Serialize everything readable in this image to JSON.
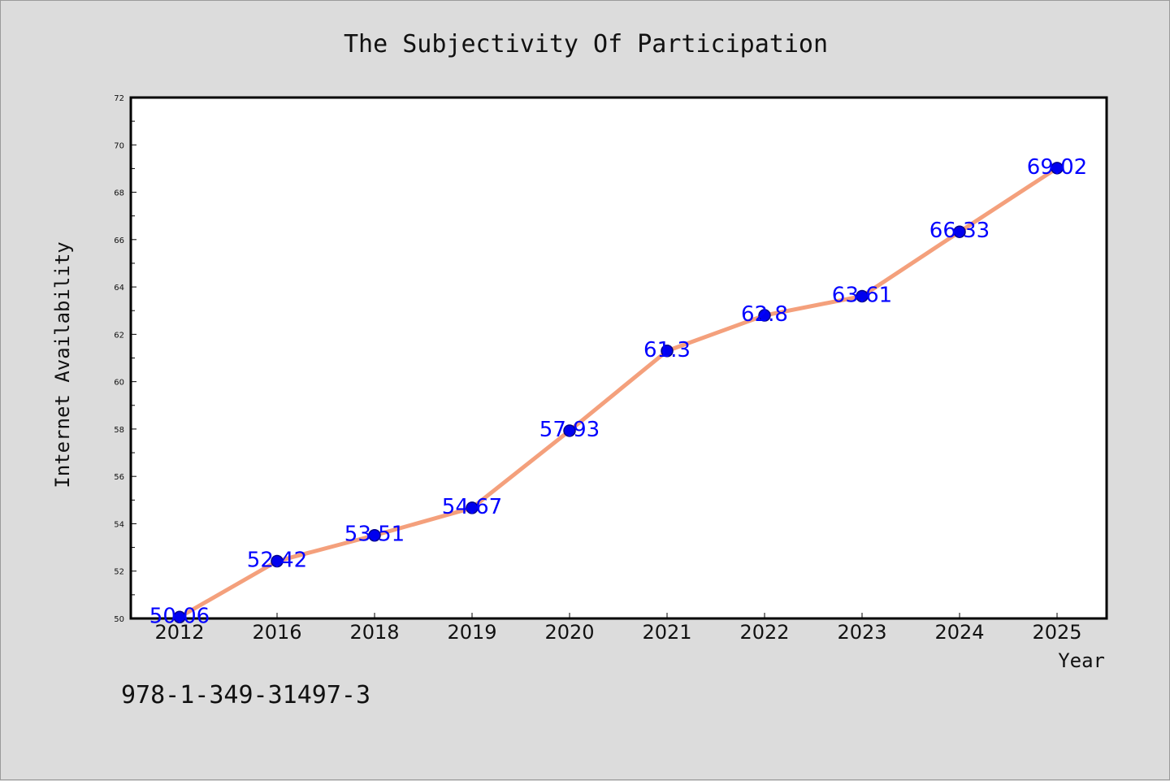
{
  "chart_data": {
    "type": "line",
    "title": "The Subjectivity Of Participation",
    "xlabel": "Year",
    "ylabel": "Internet Availability",
    "categories": [
      "2012",
      "2016",
      "2018",
      "2019",
      "2020",
      "2021",
      "2022",
      "2023",
      "2024",
      "2025"
    ],
    "series": [
      {
        "values": [
          50.06,
          52.42,
          53.51,
          54.67,
          57.93,
          61.3,
          62.8,
          63.61,
          66.33,
          69.02
        ]
      }
    ],
    "data_labels": [
      "50.06",
      "52.42",
      "53.51",
      "54.67",
      "57.93",
      "61.3",
      "62.8",
      "63.61",
      "66.33",
      "69.02"
    ],
    "ylim": [
      50,
      72
    ],
    "yticks": [
      50,
      52,
      54,
      56,
      58,
      60,
      62,
      64,
      66,
      68,
      70,
      72
    ],
    "grid": false,
    "colors": {
      "line": "#f4a07c",
      "marker": "#0000ee",
      "marker_edge": "#00008b",
      "label": "#0000ff",
      "background": "#dcdcdc",
      "plot_background": "#ffffff"
    }
  },
  "footnote": "978-1-349-31497-3"
}
